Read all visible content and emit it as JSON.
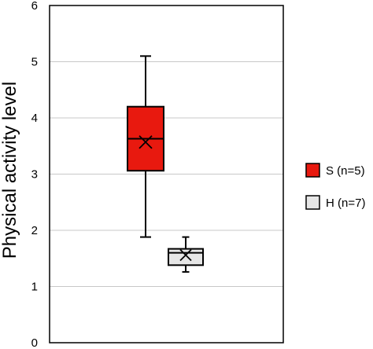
{
  "chart_data": {
    "type": "box",
    "ylabel": "Physical activity level",
    "ylim": [
      0,
      6
    ],
    "yticks": [
      0,
      1,
      2,
      3,
      4,
      5,
      6
    ],
    "grid": true,
    "legend_position": "right",
    "series": [
      {
        "name": "S (n=5)",
        "color": "#e8190f",
        "whisker_low": 1.88,
        "q1": 3.06,
        "median": 3.63,
        "q3": 4.2,
        "whisker_high": 5.1,
        "mean": 3.57
      },
      {
        "name": "H (n=7)",
        "color": "#e6e6e6",
        "whisker_low": 1.26,
        "q1": 1.38,
        "median": 1.6,
        "q3": 1.67,
        "whisker_high": 1.88,
        "mean": 1.56
      }
    ]
  }
}
